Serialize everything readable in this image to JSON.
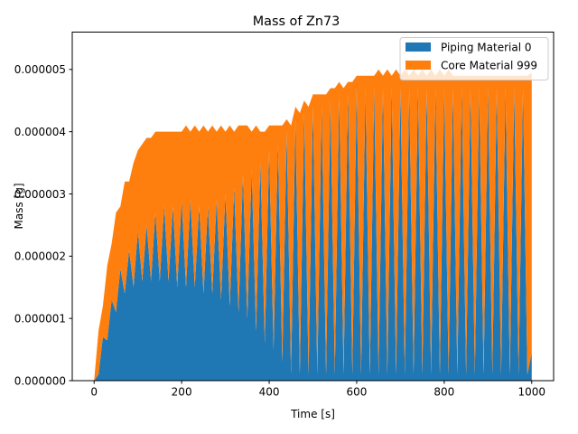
{
  "chart_data": {
    "type": "area",
    "title": "Mass of Zn73",
    "xlabel": "Time [s]",
    "ylabel": "Mass [g]",
    "xlim": [
      -50,
      1050
    ],
    "ylim": [
      0,
      5.6e-06
    ],
    "x_ticks": [
      0,
      200,
      400,
      600,
      800,
      1000
    ],
    "x_tick_labels": [
      "0",
      "200",
      "400",
      "600",
      "800",
      "1000"
    ],
    "y_ticks": [
      0,
      1e-06,
      2e-06,
      3e-06,
      4e-06,
      5e-06
    ],
    "y_tick_labels": [
      "0.000000",
      "0.000001",
      "0.000002",
      "0.000003",
      "0.000004",
      "0.000005"
    ],
    "legend_position": "top-right",
    "grid": false,
    "stacked": true,
    "series": [
      {
        "name": "Piping Material 0",
        "color": "#1f77b4",
        "x": [
          0,
          10,
          20,
          30,
          40,
          50,
          60,
          70,
          80,
          90,
          100,
          110,
          120,
          130,
          140,
          150,
          160,
          170,
          180,
          190,
          200,
          210,
          220,
          230,
          240,
          250,
          260,
          270,
          280,
          290,
          300,
          310,
          320,
          330,
          340,
          350,
          360,
          370,
          380,
          390,
          400,
          410,
          420,
          430,
          440,
          450,
          460,
          470,
          480,
          490,
          500,
          510,
          520,
          530,
          540,
          550,
          560,
          570,
          580,
          590,
          600,
          610,
          620,
          630,
          640,
          650,
          660,
          670,
          680,
          690,
          700,
          710,
          720,
          730,
          740,
          750,
          760,
          770,
          780,
          790,
          800,
          810,
          820,
          830,
          840,
          850,
          860,
          870,
          880,
          890,
          900,
          910,
          920,
          930,
          940,
          950,
          960,
          970,
          980,
          990,
          1000
        ],
        "values": [
          0,
          1e-07,
          7e-07,
          6.5e-07,
          1.3e-06,
          1.1e-06,
          1.8e-06,
          1.4e-06,
          2.1e-06,
          1.5e-06,
          2.4e-06,
          1.6e-06,
          2.5e-06,
          1.6e-06,
          2.7e-06,
          1.6e-06,
          2.8e-06,
          1.6e-06,
          2.8e-06,
          1.5e-06,
          2.9e-06,
          1.5e-06,
          2.9e-06,
          1.5e-06,
          2.8e-06,
          1.4e-06,
          2.8e-06,
          1.4e-06,
          2.9e-06,
          1.3e-06,
          3e-06,
          1.2e-06,
          3.1e-06,
          1.1e-06,
          3.3e-06,
          1e-06,
          3.4e-06,
          8e-07,
          3.5e-06,
          6e-07,
          3.7e-06,
          5e-07,
          3.8e-06,
          3e-07,
          4e-06,
          1e-07,
          4.2e-06,
          1e-07,
          4.3e-06,
          1e-07,
          4.4e-06,
          1e-07,
          4.4e-06,
          1e-07,
          4.5e-06,
          1e-07,
          4.6e-06,
          1e-07,
          4.6e-06,
          1e-07,
          4.7e-06,
          1e-07,
          4.7e-06,
          1e-07,
          4.7e-06,
          1e-07,
          4.7e-06,
          1e-07,
          4.7e-06,
          1e-07,
          4.7e-06,
          1e-07,
          4.7e-06,
          1e-07,
          4.7e-06,
          1e-07,
          4.7e-06,
          1e-07,
          4.7e-06,
          1e-07,
          4.7e-06,
          1e-07,
          4.7e-06,
          1e-07,
          4.7e-06,
          1e-07,
          4.7e-06,
          1e-07,
          4.7e-06,
          1e-07,
          4.7e-06,
          1e-07,
          4.7e-06,
          1e-07,
          4.7e-06,
          1e-07,
          4.7e-06,
          1e-07,
          4.7e-06,
          1e-07,
          4.5e-07
        ]
      },
      {
        "name": "Core Material 999",
        "color": "#ff7f0e",
        "x": [
          0,
          10,
          20,
          30,
          40,
          50,
          60,
          70,
          80,
          90,
          100,
          110,
          120,
          130,
          140,
          150,
          160,
          170,
          180,
          190,
          200,
          210,
          220,
          230,
          240,
          250,
          260,
          270,
          280,
          290,
          300,
          310,
          320,
          330,
          340,
          350,
          360,
          370,
          380,
          390,
          400,
          410,
          420,
          430,
          440,
          450,
          460,
          470,
          480,
          490,
          500,
          510,
          520,
          530,
          540,
          550,
          560,
          570,
          580,
          590,
          600,
          610,
          620,
          630,
          640,
          650,
          660,
          670,
          680,
          690,
          700,
          710,
          720,
          730,
          740,
          750,
          760,
          770,
          780,
          790,
          800,
          810,
          820,
          830,
          840,
          850,
          860,
          870,
          880,
          890,
          900,
          910,
          920,
          930,
          940,
          950,
          960,
          970,
          980,
          990,
          1000
        ],
        "values": [
          0,
          7e-07,
          5e-07,
          1.2e-06,
          9e-07,
          1.6e-06,
          1e-06,
          1.8e-06,
          1.1e-06,
          2e-06,
          1.3e-06,
          2.2e-06,
          1.4e-06,
          2.3e-06,
          1.3e-06,
          2.4e-06,
          1.2e-06,
          2.4e-06,
          1.2e-06,
          2.5e-06,
          1.1e-06,
          2.6e-06,
          1.1e-06,
          2.6e-06,
          1.2e-06,
          2.7e-06,
          1.2e-06,
          2.7e-06,
          1.1e-06,
          2.8e-06,
          1e-06,
          2.9e-06,
          9e-07,
          3e-06,
          8e-07,
          3.1e-06,
          6e-07,
          3.3e-06,
          5e-07,
          3.4e-06,
          4e-07,
          3.6e-06,
          3e-07,
          3.8e-06,
          2e-07,
          4e-06,
          2e-07,
          4.2e-06,
          2e-07,
          4.3e-06,
          2e-07,
          4.5e-06,
          2e-07,
          4.5e-06,
          2e-07,
          4.6e-06,
          2e-07,
          4.6e-06,
          2e-07,
          4.7e-06,
          2e-07,
          4.8e-06,
          2e-07,
          4.8e-06,
          2e-07,
          4.9e-06,
          2e-07,
          4.9e-06,
          2e-07,
          4.9e-06,
          2e-07,
          4.9e-06,
          2e-07,
          4.9e-06,
          2e-07,
          4.9e-06,
          2e-07,
          4.9e-06,
          2e-07,
          4.9e-06,
          2e-07,
          4.9e-06,
          2e-07,
          4.8e-06,
          2e-07,
          4.8e-06,
          2e-07,
          4.8e-06,
          2e-07,
          4.8e-06,
          2e-07,
          4.8e-06,
          2e-07,
          4.8e-06,
          2e-07,
          4.8e-06,
          2e-07,
          4.8e-06,
          2e-07,
          4.8e-06,
          4.5e-06
        ]
      }
    ]
  }
}
